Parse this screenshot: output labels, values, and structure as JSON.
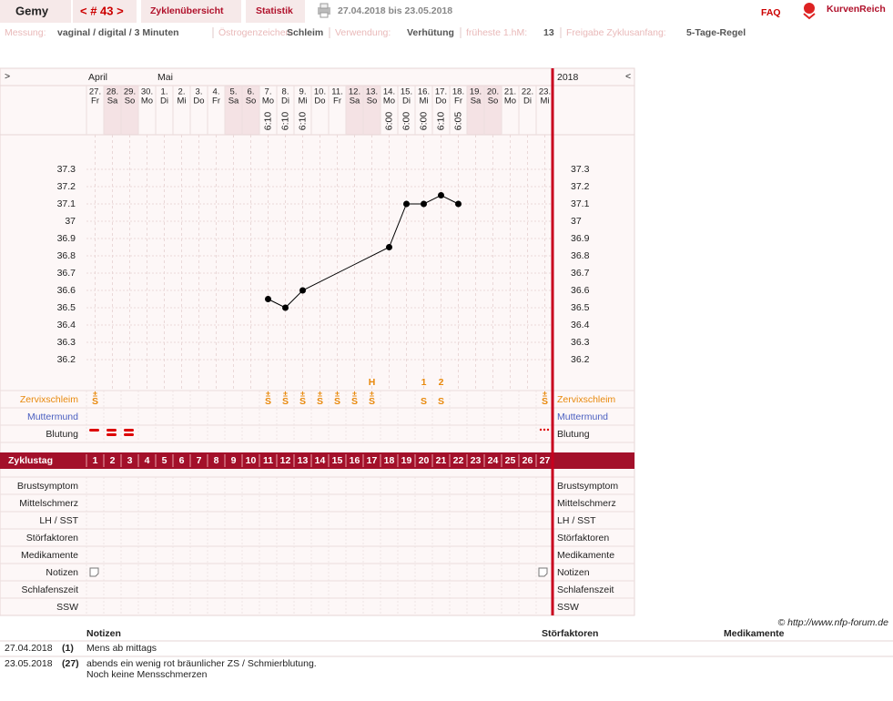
{
  "header": {
    "user": "Gemy",
    "cycle_nav": "< # 43 >",
    "tabs": [
      "Zyklenübersicht",
      "Statistik"
    ],
    "date_range": "27.04.2018 bis 23.05.2018",
    "faq": "FAQ",
    "logo": "KurvenReich"
  },
  "settings": [
    {
      "label": "Messung:",
      "value": "vaginal / digital / 3 Minuten"
    },
    {
      "label": "Östrogenzeichen:",
      "value": "Schleim"
    },
    {
      "label": "Verwendung:",
      "value": "Verhütung"
    },
    {
      "label": "früheste 1.hM:",
      "value": "13"
    },
    {
      "label": "Freigabe Zyklusanfang:",
      "value": "5-Tage-Regel"
    }
  ],
  "calendar": {
    "nav_left": ">",
    "nav_right": "<",
    "year": "2018",
    "month_labels": [
      "April",
      null,
      null,
      null,
      "Mai",
      null,
      null,
      null,
      null,
      null,
      null,
      null,
      null,
      null,
      null,
      null,
      null,
      null,
      null,
      null,
      null,
      null,
      null,
      null,
      null,
      null,
      null
    ],
    "days": [
      "27.",
      "28.",
      "29.",
      "30.",
      "1.",
      "2.",
      "3.",
      "4.",
      "5.",
      "6.",
      "7.",
      "8.",
      "9.",
      "10.",
      "11.",
      "12.",
      "13.",
      "14.",
      "15.",
      "16.",
      "17.",
      "18.",
      "19.",
      "20.",
      "21.",
      "22.",
      "23."
    ],
    "weekdays": [
      "Fr",
      "Sa",
      "So",
      "Mo",
      "Di",
      "Mi",
      "Do",
      "Fr",
      "Sa",
      "So",
      "Mo",
      "Di",
      "Mi",
      "Do",
      "Fr",
      "Sa",
      "So",
      "Mo",
      "Di",
      "Mi",
      "Do",
      "Fr",
      "Sa",
      "So",
      "Mo",
      "Di",
      "Mi"
    ],
    "times": [
      null,
      null,
      null,
      null,
      null,
      null,
      null,
      null,
      null,
      null,
      "6:10",
      "6:10",
      "6:10",
      null,
      null,
      null,
      null,
      "6:00",
      "6:00",
      "6:00",
      "6:10",
      "6:05",
      null,
      null,
      null,
      null,
      null
    ]
  },
  "chart_data": {
    "type": "line",
    "xlabel": "Zyklustag",
    "x": [
      11,
      12,
      13,
      18,
      19,
      20,
      21,
      22
    ],
    "series": [
      {
        "color": "#000000",
        "values": [
          36.55,
          36.5,
          36.6,
          36.85,
          37.1,
          37.1,
          37.15,
          37.1
        ]
      }
    ],
    "xlim": [
      1,
      27
    ],
    "xticks": [
      1,
      2,
      3,
      4,
      5,
      6,
      7,
      8,
      9,
      10,
      11,
      12,
      13,
      14,
      15,
      16,
      17,
      18,
      19,
      20,
      21,
      22,
      23,
      24,
      25,
      26,
      27
    ],
    "ylim": [
      36.1,
      37.5
    ],
    "yticks": [
      36.2,
      36.3,
      36.4,
      36.5,
      36.6,
      36.7,
      36.8,
      36.9,
      37,
      37.1,
      37.2,
      37.3
    ],
    "grid": true
  },
  "markers": [
    null,
    null,
    null,
    null,
    null,
    null,
    null,
    null,
    null,
    null,
    null,
    null,
    null,
    null,
    null,
    null,
    "H",
    null,
    null,
    "1",
    "2",
    null,
    null,
    null,
    null,
    null,
    null
  ],
  "zervixschleim": {
    "label": "Zervixschleim",
    "cells": [
      {
        "sup": "±",
        "text": "S"
      },
      null,
      null,
      null,
      null,
      null,
      null,
      null,
      null,
      null,
      {
        "sup": "±",
        "text": "S"
      },
      {
        "sup": "±",
        "text": "S"
      },
      {
        "sup": "±",
        "text": "S"
      },
      {
        "sup": "±",
        "text": "S"
      },
      {
        "sup": "±",
        "text": "S"
      },
      {
        "sup": "±",
        "text": "S"
      },
      {
        "sup": "±",
        "text": "S"
      },
      null,
      null,
      {
        "text": "S"
      },
      {
        "text": "S"
      },
      null,
      null,
      null,
      null,
      null,
      {
        "sup": "±",
        "text": "S"
      }
    ]
  },
  "muttermund": {
    "label": "Muttermund"
  },
  "blutung": {
    "label": "Blutung"
  },
  "lower_rows": [
    "Brustsymptom",
    "Mittelschmerz",
    "LH / SST",
    "Störfaktoren",
    "Medikamente",
    "Notizen",
    "Schlafenszeit",
    "SSW"
  ],
  "copyright": "© http://www.nfp-forum.de",
  "notes": {
    "headers": [
      "Notizen",
      "Störfaktoren",
      "Medikamente"
    ],
    "rows": [
      {
        "date": "27.04.2018",
        "day": "(1)",
        "lines": [
          "Mens ab mittags"
        ]
      },
      {
        "date": "23.05.2018",
        "day": "(27)",
        "lines": [
          "abends ein wenig rot bräunlicher ZS / Schmierblutung.",
          "Noch keine Mensschmerzen"
        ]
      }
    ]
  }
}
